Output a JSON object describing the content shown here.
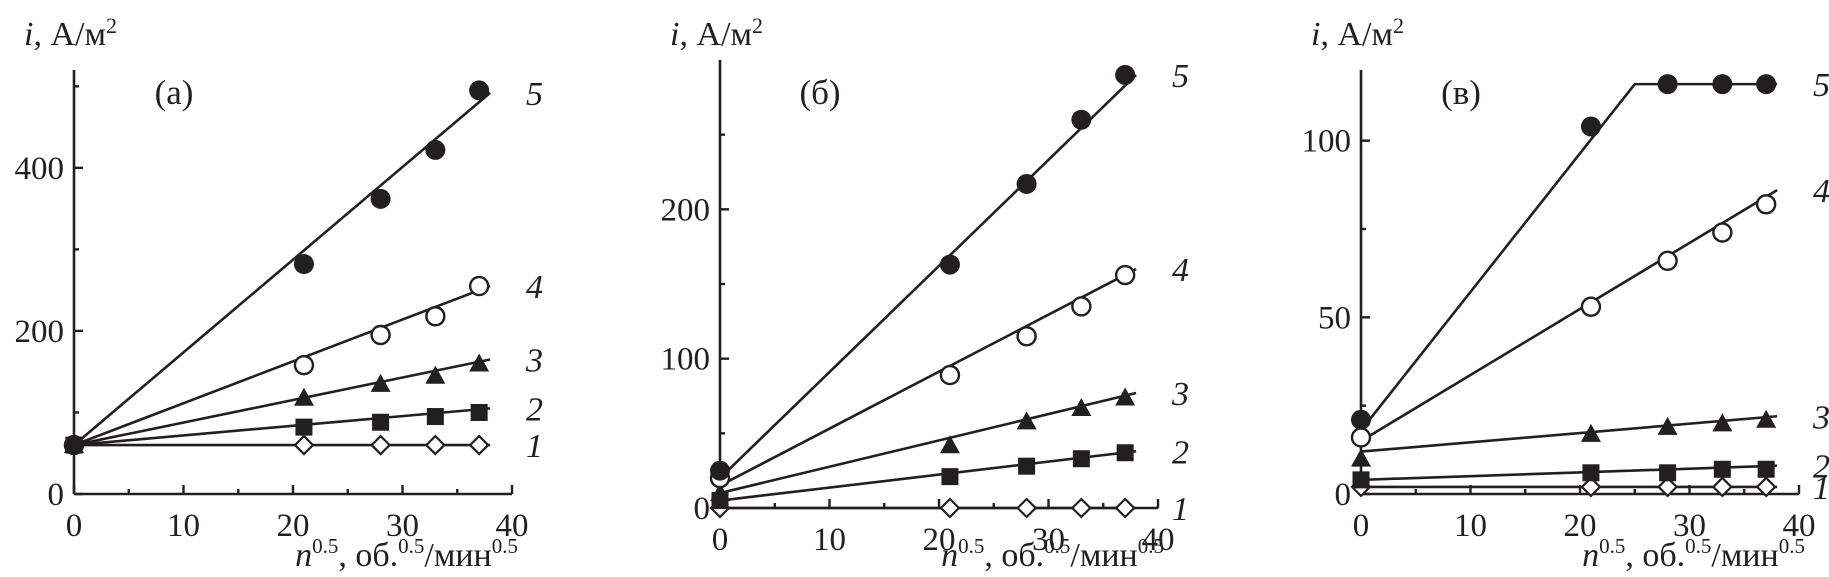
{
  "chart_data": [
    {
      "type": "scatter",
      "panel_label": "(а)",
      "ylabel_italic": "i",
      "ylabel_unit": ", А/м",
      "ylabel_sup": "2",
      "xlabel_italic": "n",
      "xlabel_sup1": "0.5",
      "xlabel_mid": ", об.",
      "xlabel_sup2": "0.5",
      "xlabel_slash": "/мин",
      "xlabel_sup3": "0.5",
      "xlim": [
        0,
        40
      ],
      "ylim": [
        0,
        520
      ],
      "xticks": [
        0,
        10,
        20,
        30,
        40
      ],
      "yticks": [
        0,
        200,
        400
      ],
      "x": [
        0,
        21,
        28,
        33,
        37
      ],
      "series": [
        {
          "name": "1",
          "marker": "diamond-open",
          "values": [
            60,
            60,
            60,
            60,
            60
          ],
          "fit": [
            [
              0,
              60
            ],
            [
              38,
              60
            ]
          ]
        },
        {
          "name": "2",
          "marker": "square",
          "values": [
            60,
            82,
            88,
            95,
            100
          ],
          "fit": [
            [
              0,
              60
            ],
            [
              38,
              105
            ]
          ]
        },
        {
          "name": "3",
          "marker": "triangle",
          "values": [
            60,
            118,
            135,
            145,
            160
          ],
          "fit": [
            [
              0,
              60
            ],
            [
              38,
              165
            ]
          ]
        },
        {
          "name": "4",
          "marker": "circle-open",
          "values": [
            60,
            158,
            195,
            218,
            255
          ],
          "fit": [
            [
              0,
              60
            ],
            [
              38,
              255
            ]
          ]
        },
        {
          "name": "5",
          "marker": "circle",
          "values": [
            60,
            282,
            362,
            422,
            495
          ],
          "fit": [
            [
              0,
              60
            ],
            [
              38,
              492
            ]
          ]
        }
      ]
    },
    {
      "type": "scatter",
      "panel_label": "(б)",
      "ylabel_italic": "i",
      "ylabel_unit": ", А/м",
      "ylabel_sup": "2",
      "xlabel_italic": "n",
      "xlabel_sup1": "0.5",
      "xlabel_mid": ", об.",
      "xlabel_sup2": "0.5",
      "xlabel_slash": "/мин",
      "xlabel_sup3": "0.5",
      "xlim": [
        0,
        40
      ],
      "ylim": [
        0,
        300
      ],
      "xticks": [
        0,
        10,
        20,
        30,
        40
      ],
      "yticks": [
        0,
        100,
        200
      ],
      "x": [
        0,
        21,
        28,
        33,
        37
      ],
      "series": [
        {
          "name": "1",
          "marker": "diamond-open",
          "values": [
            0,
            0,
            0,
            0,
            0
          ],
          "fit": [
            [
              0,
              0
            ],
            [
              38,
              0
            ]
          ]
        },
        {
          "name": "2",
          "marker": "square",
          "values": [
            5,
            21,
            28,
            33,
            37
          ],
          "fit": [
            [
              0,
              5
            ],
            [
              38,
              38
            ]
          ]
        },
        {
          "name": "3",
          "marker": "triangle",
          "values": [
            10,
            42,
            58,
            67,
            74
          ],
          "fit": [
            [
              0,
              10
            ],
            [
              38,
              77
            ]
          ]
        },
        {
          "name": "4",
          "marker": "circle-open",
          "values": [
            20,
            89,
            115,
            135,
            156
          ],
          "fit": [
            [
              0,
              15
            ],
            [
              38,
              160
            ]
          ]
        },
        {
          "name": "5",
          "marker": "circle",
          "values": [
            25,
            163,
            217,
            260,
            290
          ],
          "fit": [
            [
              0,
              20
            ],
            [
              38,
              290
            ]
          ]
        }
      ]
    },
    {
      "type": "scatter",
      "panel_label": "(в)",
      "ylabel_italic": "i",
      "ylabel_unit": ", А/м",
      "ylabel_sup": "2",
      "xlabel_italic": "n",
      "xlabel_sup1": "0.5",
      "xlabel_mid": ", об.",
      "xlabel_sup2": "0.5",
      "xlabel_slash": "/мин",
      "xlabel_sup3": "0.5",
      "xlim": [
        0,
        40
      ],
      "ylim": [
        0,
        120
      ],
      "xticks": [
        0,
        10,
        20,
        30,
        40
      ],
      "yticks": [
        0,
        50,
        100
      ],
      "x": [
        0,
        21,
        28,
        33,
        37
      ],
      "series": [
        {
          "name": "1",
          "marker": "diamond-open",
          "values": [
            2,
            2,
            2,
            2,
            2
          ],
          "fit": [
            [
              0,
              2
            ],
            [
              38,
              2
            ]
          ]
        },
        {
          "name": "2",
          "marker": "square",
          "values": [
            4,
            6,
            6,
            7,
            7
          ],
          "fit": [
            [
              0,
              4
            ],
            [
              38,
              8
            ]
          ]
        },
        {
          "name": "3",
          "marker": "triangle",
          "values": [
            10,
            17,
            19,
            20,
            21
          ],
          "fit": [
            [
              0,
              12
            ],
            [
              38,
              22
            ]
          ]
        },
        {
          "name": "4",
          "marker": "circle-open",
          "values": [
            16,
            53,
            66,
            74,
            82
          ],
          "fit": [
            [
              0,
              15
            ],
            [
              38,
              86
            ]
          ]
        },
        {
          "name": "5",
          "marker": "circle",
          "values": [
            21,
            104,
            116,
            116,
            116
          ],
          "fit": [
            [
              0,
              18
            ],
            [
              25,
              116
            ],
            [
              38,
              116
            ]
          ]
        }
      ]
    }
  ]
}
